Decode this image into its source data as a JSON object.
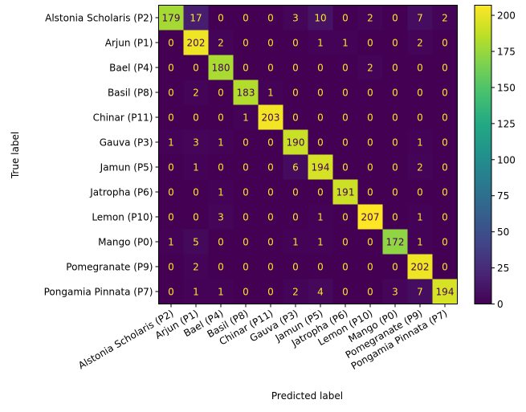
{
  "chart_data": {
    "type": "heatmap",
    "title": "",
    "xlabel": "Predicted label",
    "ylabel": "True label",
    "labels": [
      "Alstonia Scholaris (P2)",
      "Arjun (P1)",
      "Bael (P4)",
      "Basil (P8)",
      "Chinar (P11)",
      "Gauva (P3)",
      "Jamun (P5)",
      "Jatropha (P6)",
      "Lemon (P10)",
      "Mango (P0)",
      "Pomegranate (P9)",
      "Pongamia Pinnata (P7)"
    ],
    "matrix": [
      [
        179,
        17,
        0,
        0,
        0,
        3,
        10,
        0,
        2,
        0,
        7,
        2
      ],
      [
        0,
        202,
        2,
        0,
        0,
        0,
        1,
        1,
        0,
        0,
        2,
        0
      ],
      [
        0,
        0,
        180,
        0,
        0,
        0,
        0,
        0,
        2,
        0,
        0,
        0
      ],
      [
        0,
        2,
        0,
        183,
        1,
        0,
        0,
        0,
        0,
        0,
        0,
        0
      ],
      [
        0,
        0,
        0,
        1,
        203,
        0,
        0,
        0,
        0,
        0,
        0,
        0
      ],
      [
        1,
        3,
        1,
        0,
        0,
        190,
        0,
        0,
        0,
        0,
        1,
        0
      ],
      [
        0,
        1,
        0,
        0,
        0,
        6,
        194,
        0,
        0,
        0,
        2,
        0
      ],
      [
        0,
        0,
        1,
        0,
        0,
        0,
        0,
        191,
        0,
        0,
        0,
        0
      ],
      [
        0,
        0,
        3,
        0,
        0,
        0,
        1,
        0,
        207,
        0,
        1,
        0
      ],
      [
        1,
        5,
        0,
        0,
        0,
        1,
        1,
        0,
        0,
        172,
        1,
        0
      ],
      [
        0,
        2,
        0,
        0,
        0,
        0,
        0,
        0,
        0,
        0,
        202,
        0
      ],
      [
        0,
        1,
        1,
        0,
        0,
        2,
        4,
        0,
        0,
        3,
        7,
        194
      ]
    ],
    "colormap": "viridis",
    "colorbar": {
      "range": [
        0,
        207
      ],
      "ticks": [
        0,
        25,
        50,
        75,
        100,
        125,
        150,
        175,
        200
      ]
    },
    "text_colors": {
      "on_dark": "#fde725",
      "on_light": "#440154"
    }
  }
}
